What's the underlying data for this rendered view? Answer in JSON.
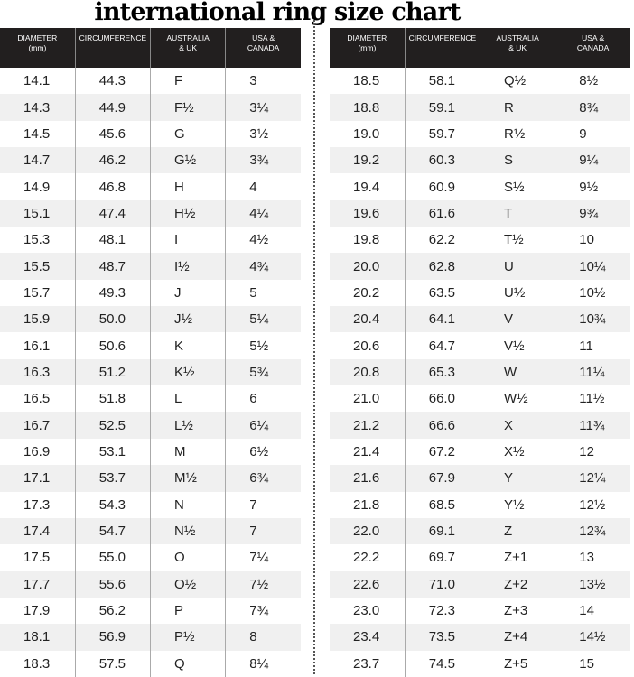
{
  "title": "international ring size chart",
  "chart_data": {
    "type": "table",
    "title": "international ring size chart",
    "columns": [
      "DIAMETER (mm)",
      "CIRCUMFERENCE",
      "AUSTRALIA & UK",
      "USA & CANADA"
    ],
    "left_rows": [
      [
        "14.1",
        "44.3",
        "F",
        "3"
      ],
      [
        "14.3",
        "44.9",
        "F½",
        "3¼"
      ],
      [
        "14.5",
        "45.6",
        "G",
        "3½"
      ],
      [
        "14.7",
        "46.2",
        "G½",
        "3¾"
      ],
      [
        "14.9",
        "46.8",
        "H",
        "4"
      ],
      [
        "15.1",
        "47.4",
        "H½",
        "4¼"
      ],
      [
        "15.3",
        "48.1",
        "I",
        "4½"
      ],
      [
        "15.5",
        "48.7",
        "I½",
        "4¾"
      ],
      [
        "15.7",
        "49.3",
        "J",
        "5"
      ],
      [
        "15.9",
        "50.0",
        "J½",
        "5¼"
      ],
      [
        "16.1",
        "50.6",
        "K",
        "5½"
      ],
      [
        "16.3",
        "51.2",
        "K½",
        "5¾"
      ],
      [
        "16.5",
        "51.8",
        "L",
        "6"
      ],
      [
        "16.7",
        "52.5",
        "L½",
        "6¼"
      ],
      [
        "16.9",
        "53.1",
        "M",
        "6½"
      ],
      [
        "17.1",
        "53.7",
        "M½",
        "6¾"
      ],
      [
        "17.3",
        "54.3",
        "N",
        "7"
      ],
      [
        "17.4",
        "54.7",
        "N½",
        "7"
      ],
      [
        "17.5",
        "55.0",
        "O",
        "7¼"
      ],
      [
        "17.7",
        "55.6",
        "O½",
        "7½"
      ],
      [
        "17.9",
        "56.2",
        "P",
        "7¾"
      ],
      [
        "18.1",
        "56.9",
        "P½",
        "8"
      ],
      [
        "18.3",
        "57.5",
        "Q",
        "8¼"
      ]
    ],
    "right_rows": [
      [
        "18.5",
        "58.1",
        "Q½",
        "8½"
      ],
      [
        "18.8",
        "59.1",
        "R",
        "8¾"
      ],
      [
        "19.0",
        "59.7",
        "R½",
        "9"
      ],
      [
        "19.2",
        "60.3",
        "S",
        "9¼"
      ],
      [
        "19.4",
        "60.9",
        "S½",
        "9½"
      ],
      [
        "19.6",
        "61.6",
        "T",
        "9¾"
      ],
      [
        "19.8",
        "62.2",
        "T½",
        "10"
      ],
      [
        "20.0",
        "62.8",
        "U",
        "10¼"
      ],
      [
        "20.2",
        "63.5",
        "U½",
        "10½"
      ],
      [
        "20.4",
        "64.1",
        "V",
        "10¾"
      ],
      [
        "20.6",
        "64.7",
        "V½",
        "11"
      ],
      [
        "20.8",
        "65.3",
        "W",
        "11¼"
      ],
      [
        "21.0",
        "66.0",
        "W½",
        "11½"
      ],
      [
        "21.2",
        "66.6",
        "X",
        "11¾"
      ],
      [
        "21.4",
        "67.2",
        "X½",
        "12"
      ],
      [
        "21.6",
        "67.9",
        "Y",
        "12¼"
      ],
      [
        "21.8",
        "68.5",
        "Y½",
        "12½"
      ],
      [
        "22.0",
        "69.1",
        "Z",
        "12¾"
      ],
      [
        "22.2",
        "69.7",
        "Z+1",
        "13"
      ],
      [
        "22.6",
        "71.0",
        "Z+2",
        "13½"
      ],
      [
        "23.0",
        "72.3",
        "Z+3",
        "14"
      ],
      [
        "23.4",
        "73.5",
        "Z+4",
        "14½"
      ],
      [
        "23.7",
        "74.5",
        "Z+5",
        "15"
      ]
    ]
  },
  "colors": {
    "header_bg": "#221f1f",
    "header_text": "#ffffff",
    "alt_row": "#f0f0f0"
  }
}
